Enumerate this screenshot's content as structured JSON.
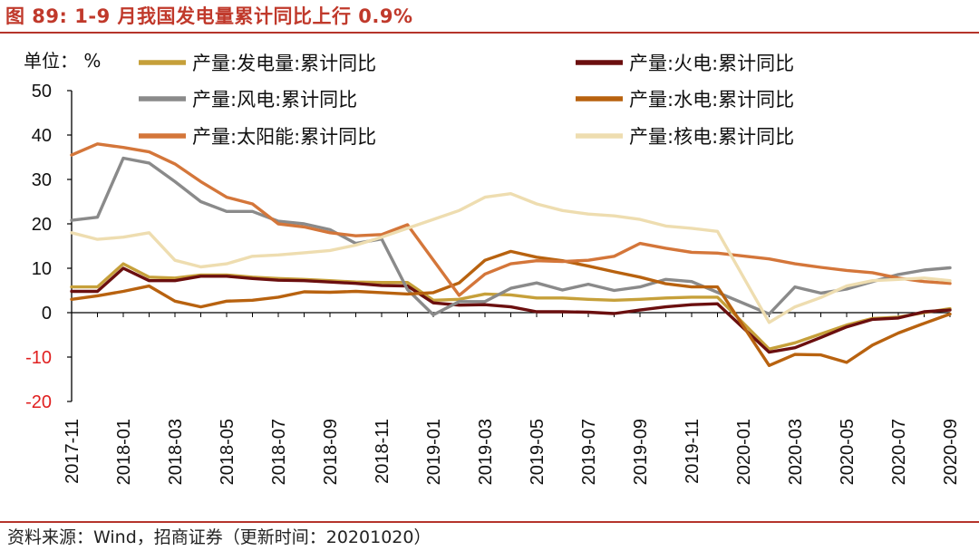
{
  "figure": {
    "title": "图 89:  1-9 月我国发电量累计同比上行 0.9%",
    "source": "资料来源：Wind，招商证券（更新时间：20201020）"
  },
  "chart_data": {
    "type": "line",
    "unit_label": "单位： %",
    "ylim": [
      -20,
      50
    ],
    "yticks": [
      -20,
      -10,
      0,
      10,
      20,
      30,
      40,
      50
    ],
    "ytick_labels": [
      "-20",
      "-10",
      "0",
      "10",
      "20",
      "30",
      "40",
      "50"
    ],
    "x": [
      "2017-11",
      "2017-12",
      "2018-01",
      "2018-02",
      "2018-03",
      "2018-04",
      "2018-05",
      "2018-06",
      "2018-07",
      "2018-08",
      "2018-09",
      "2018-10",
      "2018-11",
      "2018-12",
      "2019-01",
      "2019-02",
      "2019-03",
      "2019-04",
      "2019-05",
      "2019-06",
      "2019-07",
      "2019-08",
      "2019-09",
      "2019-10",
      "2019-11",
      "2019-12",
      "2020-01",
      "2020-02",
      "2020-03",
      "2020-04",
      "2020-05",
      "2020-06",
      "2020-07",
      "2020-08",
      "2020-09"
    ],
    "xtick_labels": [
      "2017-11",
      "2018-01",
      "2018-03",
      "2018-05",
      "2018-07",
      "2018-09",
      "2018-11",
      "2019-01",
      "2019-03",
      "2019-05",
      "2019-07",
      "2019-09",
      "2019-11",
      "2020-01",
      "2020-03",
      "2020-05",
      "2020-07",
      "2020-09"
    ],
    "grid": false,
    "legend_position": "top",
    "series": [
      {
        "name": "产量:发电量:累计同比",
        "color": "#c6a03a",
        "values": [
          5.8,
          5.8,
          11.0,
          8.0,
          7.8,
          8.5,
          8.5,
          8.0,
          7.7,
          7.5,
          7.2,
          6.9,
          6.8,
          6.8,
          2.8,
          3.0,
          4.2,
          4.0,
          3.3,
          3.3,
          3.0,
          2.8,
          3.0,
          3.3,
          3.5,
          3.5,
          null,
          -8.2,
          -6.8,
          -4.8,
          -2.8,
          -1.3,
          -1.0,
          0.0,
          0.9
        ]
      },
      {
        "name": "产量:火电:累计同比",
        "color": "#6b0f0f",
        "values": [
          4.8,
          4.8,
          10.0,
          7.2,
          7.2,
          8.2,
          8.2,
          7.7,
          7.3,
          7.2,
          6.9,
          6.6,
          6.1,
          6.0,
          2.2,
          1.7,
          1.8,
          1.3,
          0.2,
          0.2,
          0.1,
          -0.2,
          0.6,
          1.3,
          1.8,
          2.0,
          null,
          -8.9,
          -7.9,
          -5.6,
          -3.2,
          -1.5,
          -1.2,
          0.2,
          0.6
        ]
      },
      {
        "name": "产量:风电:累计同比",
        "color": "#8a8a8a",
        "values": [
          20.8,
          21.5,
          34.8,
          33.7,
          29.5,
          25.0,
          22.8,
          22.8,
          20.6,
          20.0,
          18.7,
          15.6,
          16.6,
          5.2,
          -0.5,
          2.5,
          2.5,
          5.5,
          6.7,
          5.1,
          6.4,
          5.0,
          5.8,
          7.5,
          7.0,
          null,
          null,
          -0.3,
          5.8,
          4.4,
          5.3,
          7.0,
          8.6,
          9.6,
          10.1
        ]
      },
      {
        "name": "产量:水电:累计同比",
        "color": "#b8620f",
        "values": [
          3.0,
          3.8,
          4.8,
          6.0,
          2.6,
          1.3,
          2.6,
          2.8,
          3.5,
          4.7,
          4.6,
          4.8,
          4.5,
          4.2,
          4.5,
          6.7,
          11.8,
          13.8,
          12.5,
          11.7,
          10.5,
          9.2,
          8.0,
          6.5,
          5.8,
          5.8,
          null,
          -11.9,
          -9.4,
          -9.5,
          -11.2,
          -7.3,
          -4.6,
          -2.4,
          -0.3
        ]
      },
      {
        "name": "产量:太阳能:累计同比",
        "color": "#d4763a",
        "values": [
          35.5,
          38.0,
          37.2,
          36.2,
          33.5,
          29.5,
          26.0,
          24.5,
          20.0,
          19.3,
          18.0,
          17.3,
          17.6,
          19.8,
          null,
          3.9,
          8.7,
          11.0,
          11.7,
          11.5,
          11.8,
          12.7,
          15.6,
          14.5,
          13.6,
          13.4,
          null,
          12.1,
          11.0,
          10.2,
          9.5,
          9.0,
          7.8,
          7.0,
          6.6
        ]
      },
      {
        "name": "产量:核电:累计同比",
        "color": "#eeddb0",
        "values": [
          18.0,
          16.5,
          17.0,
          18.0,
          11.8,
          10.3,
          11.0,
          12.7,
          13.0,
          13.5,
          14.0,
          15.2,
          17.0,
          19.0,
          21.0,
          23.0,
          26.0,
          26.8,
          24.5,
          23.0,
          22.2,
          21.8,
          21.0,
          19.5,
          19.0,
          18.3,
          null,
          -2.2,
          1.3,
          3.4,
          6.0,
          7.2,
          7.5,
          7.8,
          7.2
        ]
      }
    ]
  }
}
